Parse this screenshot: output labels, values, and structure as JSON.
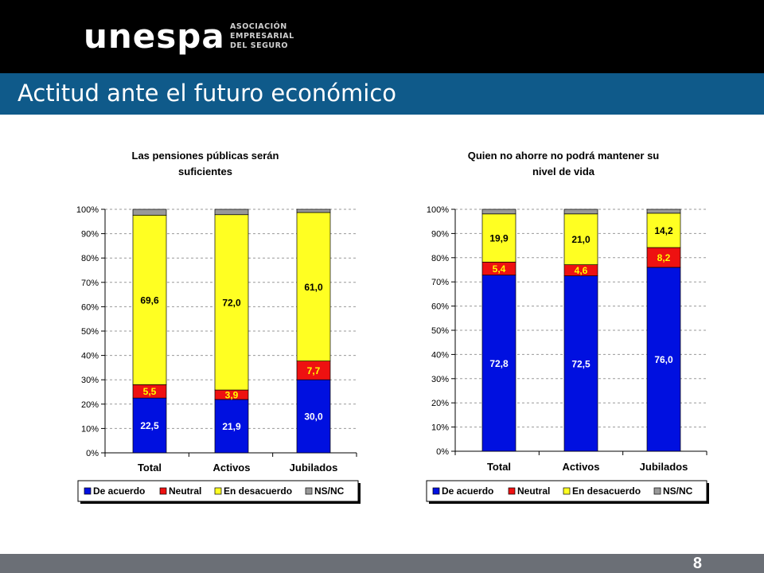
{
  "header": {
    "logo_text": "unespa",
    "logo_sub": [
      "ASOCIACIÓN",
      "EMPRESARIAL",
      "DEL SEGURO"
    ],
    "slide_title": "Actitud ante el futuro económico"
  },
  "footer": {
    "page_number": "8"
  },
  "colors": {
    "De acuerdo": "#0010e0",
    "Neutral": "#ee1111",
    "En desacuerdo": "#ffff22",
    "NS/NC": "#999999",
    "title_bar": "#0f5a8a"
  },
  "chart_data": [
    {
      "type": "bar",
      "stacked": true,
      "percent": true,
      "title": [
        "Las pensiones públicas serán",
        "suficientes"
      ],
      "categories": [
        "Total",
        "Activos",
        "Jubilados"
      ],
      "series": [
        {
          "name": "De acuerdo",
          "values": [
            22.5,
            21.9,
            30.0
          ],
          "labels": [
            "22,5",
            "21,9",
            "30,0"
          ]
        },
        {
          "name": "Neutral",
          "values": [
            5.5,
            3.9,
            7.7
          ],
          "labels": [
            "5,5",
            "3,9",
            "7,7"
          ]
        },
        {
          "name": "En desacuerdo",
          "values": [
            69.6,
            72.0,
            61.0
          ],
          "labels": [
            "69,6",
            "72,0",
            "61,0"
          ]
        },
        {
          "name": "NS/NC",
          "values": [
            2.4,
            2.2,
            1.3
          ],
          "labels": []
        }
      ],
      "ylim": [
        0,
        100
      ],
      "yticks": [
        "0%",
        "10%",
        "20%",
        "30%",
        "40%",
        "50%",
        "60%",
        "70%",
        "80%",
        "90%",
        "100%"
      ],
      "grid": true,
      "legend": "bottom"
    },
    {
      "type": "bar",
      "stacked": true,
      "percent": true,
      "title": [
        "Quien no ahorre no podrá mantener su",
        "nivel de vida"
      ],
      "categories": [
        "Total",
        "Activos",
        "Jubilados"
      ],
      "series": [
        {
          "name": "De acuerdo",
          "values": [
            72.8,
            72.5,
            76.0
          ],
          "labels": [
            "72,8",
            "72,5",
            "76,0"
          ]
        },
        {
          "name": "Neutral",
          "values": [
            5.4,
            4.6,
            8.2
          ],
          "labels": [
            "5,4",
            "4,6",
            "8,2"
          ]
        },
        {
          "name": "En desacuerdo",
          "values": [
            19.9,
            21.0,
            14.2
          ],
          "labels": [
            "19,9",
            "21,0",
            "14,2"
          ]
        },
        {
          "name": "NS/NC",
          "values": [
            1.9,
            1.9,
            1.6
          ],
          "labels": []
        }
      ],
      "ylim": [
        0,
        100
      ],
      "yticks": [
        "0%",
        "10%",
        "20%",
        "30%",
        "40%",
        "50%",
        "60%",
        "70%",
        "80%",
        "90%",
        "100%"
      ],
      "grid": true,
      "legend": "bottom"
    }
  ]
}
